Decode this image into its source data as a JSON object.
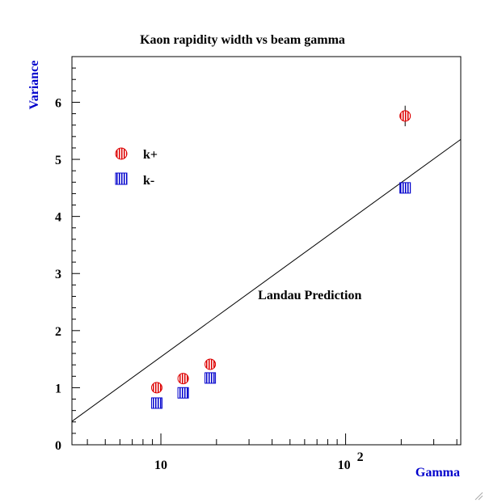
{
  "chart_data": {
    "type": "scatter",
    "title": "Kaon rapidity width vs beam gamma",
    "xlabel": "Gamma",
    "ylabel": "Variance",
    "x_scale": "log",
    "xlim": [
      3.3,
      420
    ],
    "ylim": [
      0,
      6.8
    ],
    "x_tick_labels": [
      {
        "value": 10,
        "label": "10"
      },
      {
        "value": 100,
        "base": "10",
        "exp": "2"
      }
    ],
    "y_tick_labels": [
      "0",
      "1",
      "2",
      "3",
      "4",
      "5",
      "6"
    ],
    "grid": false,
    "legend_position": "upper-left",
    "series": [
      {
        "name": "k+",
        "color": "#dd0000",
        "marker": "circle-striped",
        "points": [
          {
            "x": 9.5,
            "y": 1.0
          },
          {
            "x": 13.2,
            "y": 1.16
          },
          {
            "x": 18.5,
            "y": 1.41
          },
          {
            "x": 210,
            "y": 5.76,
            "yerr": 0.18
          }
        ]
      },
      {
        "name": "k-",
        "color": "#0000cc",
        "marker": "square-striped",
        "points": [
          {
            "x": 9.5,
            "y": 0.73
          },
          {
            "x": 13.2,
            "y": 0.91
          },
          {
            "x": 18.5,
            "y": 1.17
          },
          {
            "x": 210,
            "y": 4.5
          }
        ]
      }
    ],
    "annotations": [
      {
        "text": "Landau Prediction",
        "x": 64,
        "y": 2.62
      }
    ],
    "reference_line": {
      "label": "Landau Prediction",
      "from": {
        "x": 3.3,
        "y": 0.41
      },
      "to": {
        "x": 420,
        "y": 5.35
      }
    }
  }
}
